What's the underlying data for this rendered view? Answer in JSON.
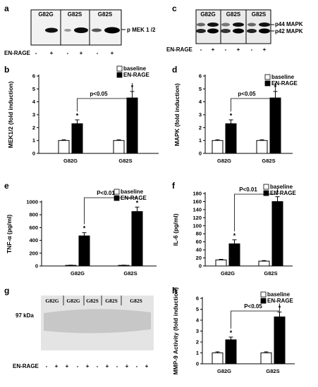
{
  "panel_letters": [
    "a",
    "b",
    "c",
    "d",
    "e",
    "f",
    "g",
    "h"
  ],
  "blot_a": {
    "groups": [
      "G82G",
      "G82S",
      "G82S"
    ],
    "band_label": "p MEK 1 /2",
    "treatment_label": "EN-RAGE",
    "lanes": [
      "-",
      "+",
      "-",
      "+",
      "-",
      "+"
    ]
  },
  "blot_c": {
    "groups": [
      "G82G",
      "G82S",
      "G82S"
    ],
    "band_labels": [
      "p44 MAPK",
      "p42 MAPK"
    ],
    "treatment_label": "EN-RAGE",
    "lanes": [
      "-",
      "+",
      "-",
      "+",
      "-",
      "+"
    ]
  },
  "gel_g": {
    "groups": [
      "G82G",
      "G82G",
      "G82S",
      "G82S",
      "G82S"
    ],
    "size_marker": "97 kDa",
    "treatment_label": "EN-RAGE",
    "lanes": [
      "-",
      "+",
      "+",
      "-",
      "+",
      "-",
      "+",
      "-",
      "+",
      "-",
      "+"
    ]
  },
  "chart_data": [
    {
      "panel": "b",
      "type": "bar",
      "categories": [
        "G82G",
        "G82S"
      ],
      "series": [
        {
          "name": "baseline",
          "values": [
            1.0,
            1.0
          ],
          "errors": [
            0.05,
            0.05
          ],
          "color": "#ffffff"
        },
        {
          "name": "EN-RAGE",
          "values": [
            2.3,
            4.3
          ],
          "errors": [
            0.3,
            0.5
          ],
          "color": "#000000"
        }
      ],
      "ylabel": "MEK1/2 (fold induction)",
      "ylim": [
        0,
        6
      ],
      "yticks": [
        "0",
        "1",
        "2",
        "3",
        "4",
        "5",
        "6"
      ],
      "significance": "p<0.05",
      "stars": [
        "*",
        "*"
      ],
      "legend": "top-right"
    },
    {
      "panel": "d",
      "type": "bar",
      "categories": [
        "G82G",
        "G82S"
      ],
      "series": [
        {
          "name": "baseline",
          "values": [
            1.0,
            1.0
          ],
          "errors": [
            0.05,
            0.05
          ],
          "color": "#ffffff"
        },
        {
          "name": "EN-RAGE",
          "values": [
            2.3,
            4.3
          ],
          "errors": [
            0.3,
            0.5
          ],
          "color": "#000000"
        }
      ],
      "ylabel": "MAPK (fold induction)",
      "ylim": [
        0,
        6
      ],
      "yticks": [
        "0",
        "1",
        "2",
        "3",
        "4",
        "5",
        "6"
      ],
      "significance": "p<0.05",
      "stars": [
        "*",
        "*"
      ],
      "legend": "top-right"
    },
    {
      "panel": "e",
      "type": "bar",
      "categories": [
        "G82G",
        "G82S"
      ],
      "series": [
        {
          "name": "baseline",
          "values": [
            10,
            10
          ],
          "errors": [
            3,
            3
          ],
          "color": "#ffffff"
        },
        {
          "name": "EN-RAGE",
          "values": [
            470,
            850
          ],
          "errors": [
            50,
            70
          ],
          "color": "#000000"
        }
      ],
      "ylabel": "TNF-α (pg/ml)",
      "ylim": [
        0,
        1000
      ],
      "yticks": [
        "0",
        "200",
        "400",
        "600",
        "800",
        "1000"
      ],
      "significance": "P<0.01",
      "stars": [
        "*",
        "*"
      ],
      "legend": "top-right"
    },
    {
      "panel": "f",
      "type": "bar",
      "categories": [
        "G82G",
        "G82S"
      ],
      "series": [
        {
          "name": "baseline",
          "values": [
            15,
            12
          ],
          "errors": [
            1.5,
            1.5
          ],
          "color": "#ffffff"
        },
        {
          "name": "EN-RAGE",
          "values": [
            55,
            160
          ],
          "errors": [
            10,
            12
          ],
          "color": "#000000"
        }
      ],
      "ylabel": "IL-6 (pg/ml)",
      "ylim": [
        0,
        180
      ],
      "yticks": [
        "0",
        "20",
        "40",
        "60",
        "80",
        "100",
        "120",
        "140",
        "160",
        "180"
      ],
      "significance": "P<0.01",
      "stars": [
        "*",
        "*"
      ],
      "legend": "top-right"
    },
    {
      "panel": "h",
      "type": "bar",
      "categories": [
        "G82G",
        "G82S"
      ],
      "series": [
        {
          "name": "baseline",
          "values": [
            1.0,
            1.0
          ],
          "errors": [
            0.1,
            0.1
          ],
          "color": "#ffffff"
        },
        {
          "name": "EN-RAGE",
          "values": [
            2.2,
            4.3
          ],
          "errors": [
            0.25,
            0.45
          ],
          "color": "#000000"
        }
      ],
      "ylabel": "MMP-9 Activity (fold induction)",
      "ylim": [
        0,
        6
      ],
      "yticks": [
        "0",
        "1",
        "2",
        "3",
        "4",
        "5",
        "6"
      ],
      "significance": "P<0.05",
      "stars": [
        "*",
        "*"
      ],
      "legend": "top-right"
    }
  ]
}
